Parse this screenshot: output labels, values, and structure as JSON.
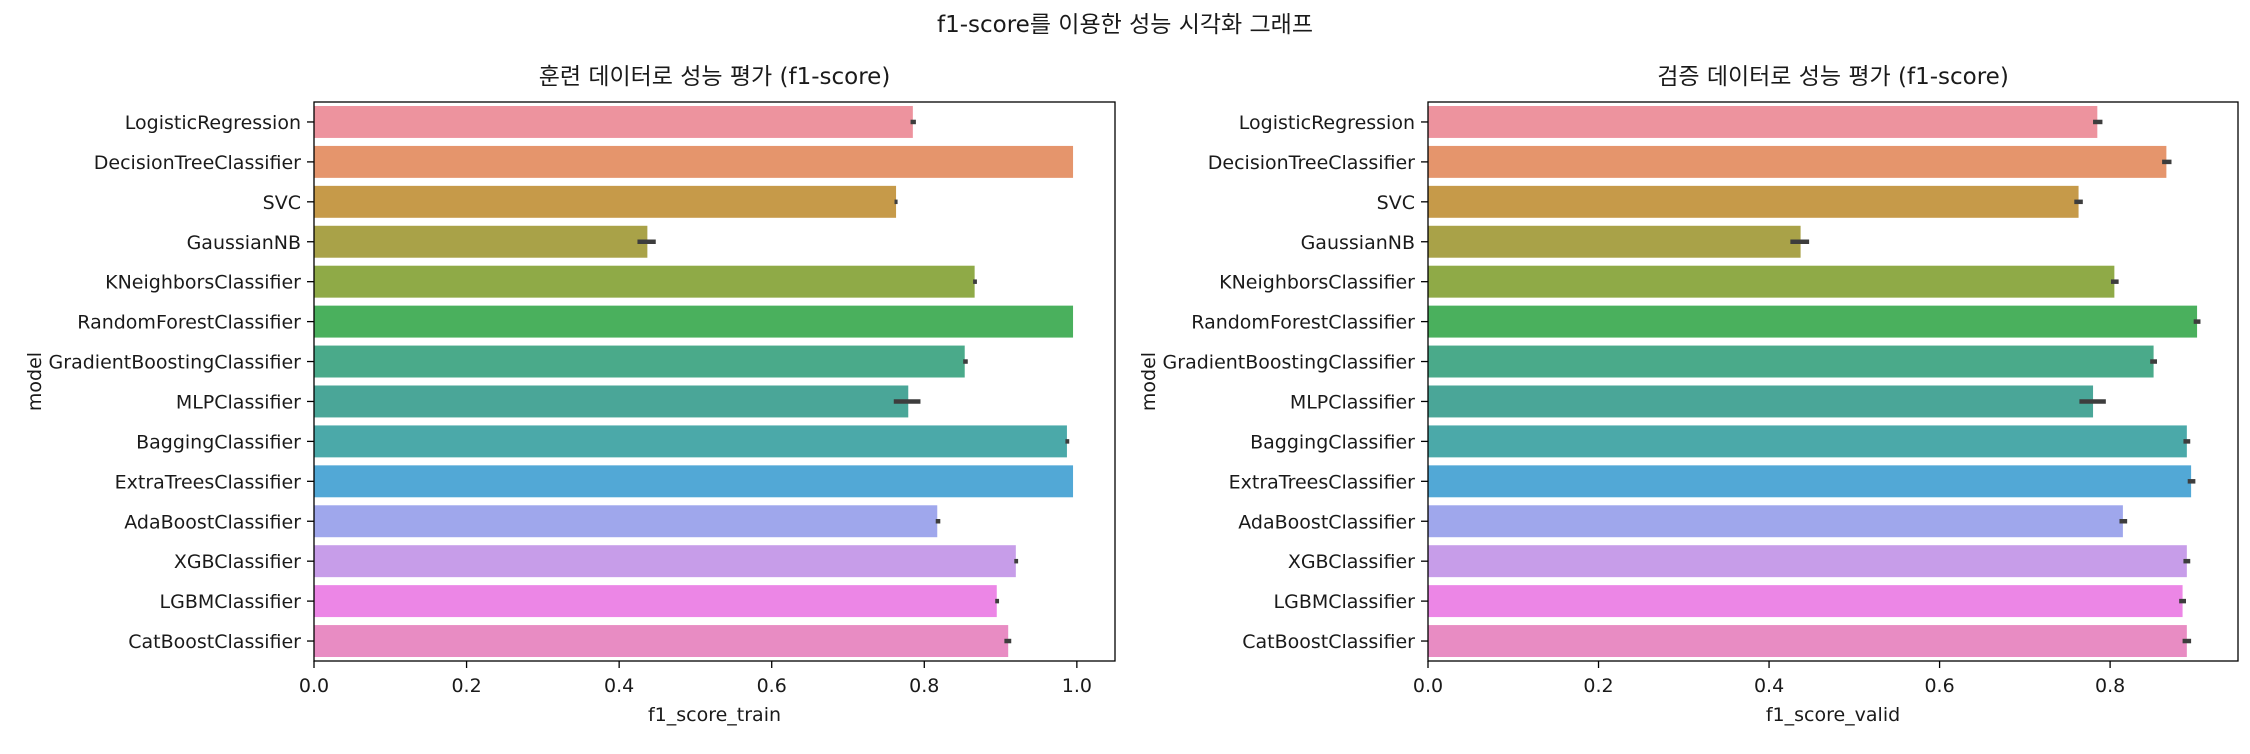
{
  "suptitle": "f1-score를 이용한 성능 시각화 그래프",
  "chart_data": [
    {
      "type": "bar",
      "orientation": "horizontal",
      "title": "훈련 데이터로 성능 평가 (f1-score)",
      "xlabel": "f1_score_train",
      "ylabel": "model",
      "xlim": [
        0,
        1.05
      ],
      "xticks": [
        "0.0",
        "0.2",
        "0.4",
        "0.6",
        "0.8",
        "1.0"
      ],
      "xtick_values": [
        0,
        0.2,
        0.4,
        0.6,
        0.8,
        1.0
      ],
      "grid": false,
      "categories": [
        "LogisticRegression",
        "DecisionTreeClassifier",
        "SVC",
        "GaussianNB",
        "KNeighborsClassifier",
        "RandomForestClassifier",
        "GradientBoostingClassifier",
        "MLPClassifier",
        "BaggingClassifier",
        "ExtraTreesClassifier",
        "AdaBoostClassifier",
        "XGBClassifier",
        "LGBMClassifier",
        "CatBoostClassifier"
      ],
      "values": [
        0.785,
        0.995,
        0.763,
        0.437,
        0.866,
        0.995,
        0.853,
        0.779,
        0.987,
        0.995,
        0.817,
        0.92,
        0.895,
        0.91
      ],
      "error_low": [
        0.782,
        0.995,
        0.761,
        0.424,
        0.864,
        0.995,
        0.851,
        0.76,
        0.985,
        0.995,
        0.815,
        0.918,
        0.893,
        0.905
      ],
      "error_high": [
        0.789,
        0.995,
        0.765,
        0.448,
        0.869,
        0.995,
        0.857,
        0.795,
        0.99,
        0.995,
        0.821,
        0.923,
        0.898,
        0.914
      ],
      "colors": [
        "#ed939e",
        "#e5956c",
        "#c69a49",
        "#a9a248",
        "#8faa47",
        "#4ab05d",
        "#4aaa8a",
        "#4aa698",
        "#4ba9a9",
        "#52a8d6",
        "#9fa7ec",
        "#c79de9",
        "#ec86e6",
        "#e88cc3"
      ]
    },
    {
      "type": "bar",
      "orientation": "horizontal",
      "title": "검증 데이터로 성능 평가 (f1-score)",
      "xlabel": "f1_score_valid",
      "ylabel": "model",
      "xlim": [
        0,
        0.95
      ],
      "xticks": [
        "0.0",
        "0.2",
        "0.4",
        "0.6",
        "0.8"
      ],
      "xtick_values": [
        0,
        0.2,
        0.4,
        0.6,
        0.8
      ],
      "grid": false,
      "categories": [
        "LogisticRegression",
        "DecisionTreeClassifier",
        "SVC",
        "GaussianNB",
        "KNeighborsClassifier",
        "RandomForestClassifier",
        "GradientBoostingClassifier",
        "MLPClassifier",
        "BaggingClassifier",
        "ExtraTreesClassifier",
        "AdaBoostClassifier",
        "XGBClassifier",
        "LGBMClassifier",
        "CatBoostClassifier"
      ],
      "values": [
        0.785,
        0.866,
        0.763,
        0.437,
        0.805,
        0.902,
        0.851,
        0.78,
        0.89,
        0.895,
        0.815,
        0.89,
        0.885,
        0.89
      ],
      "error_low": [
        0.78,
        0.861,
        0.758,
        0.425,
        0.801,
        0.898,
        0.847,
        0.764,
        0.886,
        0.891,
        0.811,
        0.886,
        0.881,
        0.885
      ],
      "error_high": [
        0.791,
        0.872,
        0.768,
        0.447,
        0.81,
        0.906,
        0.855,
        0.795,
        0.894,
        0.9,
        0.82,
        0.894,
        0.889,
        0.895
      ],
      "colors": [
        "#ed939e",
        "#e5956c",
        "#c69a49",
        "#a9a248",
        "#8faa47",
        "#4ab05d",
        "#4aaa8a",
        "#4aa698",
        "#4ba9a9",
        "#52a8d6",
        "#9fa7ec",
        "#c79de9",
        "#ec86e6",
        "#e88cc3"
      ]
    }
  ]
}
